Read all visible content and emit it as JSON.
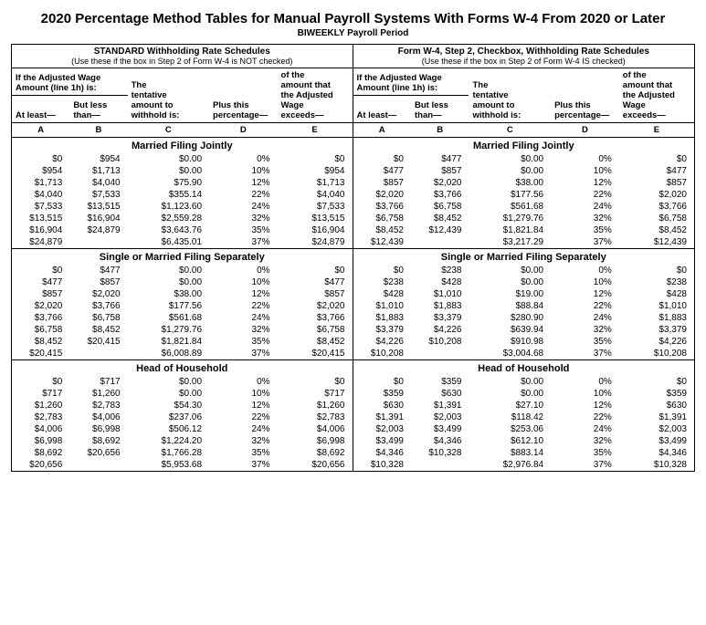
{
  "title": "2020 Percentage Method Tables for Manual Payroll Systems With Forms W-4 From 2020 or Later",
  "subtitle": "BIWEEKLY Payroll Period",
  "schedules": [
    {
      "title": "STANDARD Withholding Rate Schedules",
      "sub": "(Use these if the box in Step 2 of Form W-4 is NOT checked)",
      "headTop": [
        "If the Adjusted Wage Amount (line 1h) is:",
        "",
        "The tentative amount to withhold is:",
        "Plus this percentage—",
        "of the amount that the Adjusted Wage exceeds—"
      ],
      "headMid": [
        "At least—",
        "But less than—",
        "",
        "",
        ""
      ]
    },
    {
      "title": "Form W-4, Step 2, Checkbox, Withholding Rate Schedules",
      "sub": "(Use these if the box in Step 2 of Form W-4 IS checked)",
      "headTop": [
        "If the Adjusted Wage Amount (line 1h) is:",
        "",
        "The tentative amount to withhold is:",
        "Plus this percentage—",
        "of the amount that the Adjusted Wage exceeds—"
      ],
      "headMid": [
        "At least—",
        "But less than—",
        "",
        "",
        ""
      ]
    }
  ],
  "letters": [
    "A",
    "B",
    "C",
    "D",
    "E"
  ],
  "sections": [
    {
      "title": "Married Filing Jointly",
      "left": [
        [
          "$0",
          "$954",
          "$0.00",
          "0%",
          "$0"
        ],
        [
          "$954",
          "$1,713",
          "$0.00",
          "10%",
          "$954"
        ],
        [
          "$1,713",
          "$4,040",
          "$75.90",
          "12%",
          "$1,713"
        ],
        [
          "$4,040",
          "$7,533",
          "$355.14",
          "22%",
          "$4,040"
        ],
        [
          "$7,533",
          "$13,515",
          "$1,123.60",
          "24%",
          "$7,533"
        ],
        [
          "$13,515",
          "$16,904",
          "$2,559.28",
          "32%",
          "$13,515"
        ],
        [
          "$16,904",
          "$24,879",
          "$3,643.76",
          "35%",
          "$16,904"
        ],
        [
          "$24,879",
          "",
          "$6,435.01",
          "37%",
          "$24,879"
        ]
      ],
      "right": [
        [
          "$0",
          "$477",
          "$0.00",
          "0%",
          "$0"
        ],
        [
          "$477",
          "$857",
          "$0.00",
          "10%",
          "$477"
        ],
        [
          "$857",
          "$2,020",
          "$38.00",
          "12%",
          "$857"
        ],
        [
          "$2,020",
          "$3,766",
          "$177.56",
          "22%",
          "$2,020"
        ],
        [
          "$3,766",
          "$6,758",
          "$561.68",
          "24%",
          "$3,766"
        ],
        [
          "$6,758",
          "$8,452",
          "$1,279.76",
          "32%",
          "$6,758"
        ],
        [
          "$8,452",
          "$12,439",
          "$1,821.84",
          "35%",
          "$8,452"
        ],
        [
          "$12,439",
          "",
          "$3,217.29",
          "37%",
          "$12,439"
        ]
      ]
    },
    {
      "title": "Single or Married Filing Separately",
      "left": [
        [
          "$0",
          "$477",
          "$0.00",
          "0%",
          "$0"
        ],
        [
          "$477",
          "$857",
          "$0.00",
          "10%",
          "$477"
        ],
        [
          "$857",
          "$2,020",
          "$38.00",
          "12%",
          "$857"
        ],
        [
          "$2,020",
          "$3,766",
          "$177.56",
          "22%",
          "$2,020"
        ],
        [
          "$3,766",
          "$6,758",
          "$561.68",
          "24%",
          "$3,766"
        ],
        [
          "$6,758",
          "$8,452",
          "$1,279.76",
          "32%",
          "$6,758"
        ],
        [
          "$8,452",
          "$20,415",
          "$1,821.84",
          "35%",
          "$8,452"
        ],
        [
          "$20,415",
          "",
          "$6,008.89",
          "37%",
          "$20,415"
        ]
      ],
      "right": [
        [
          "$0",
          "$238",
          "$0.00",
          "0%",
          "$0"
        ],
        [
          "$238",
          "$428",
          "$0.00",
          "10%",
          "$238"
        ],
        [
          "$428",
          "$1,010",
          "$19.00",
          "12%",
          "$428"
        ],
        [
          "$1,010",
          "$1,883",
          "$88.84",
          "22%",
          "$1,010"
        ],
        [
          "$1,883",
          "$3,379",
          "$280.90",
          "24%",
          "$1,883"
        ],
        [
          "$3,379",
          "$4,226",
          "$639.94",
          "32%",
          "$3,379"
        ],
        [
          "$4,226",
          "$10,208",
          "$910.98",
          "35%",
          "$4,226"
        ],
        [
          "$10,208",
          "",
          "$3,004.68",
          "37%",
          "$10,208"
        ]
      ]
    },
    {
      "title": "Head of Household",
      "left": [
        [
          "$0",
          "$717",
          "$0.00",
          "0%",
          "$0"
        ],
        [
          "$717",
          "$1,260",
          "$0.00",
          "10%",
          "$717"
        ],
        [
          "$1,260",
          "$2,783",
          "$54.30",
          "12%",
          "$1,260"
        ],
        [
          "$2,783",
          "$4,006",
          "$237.06",
          "22%",
          "$2,783"
        ],
        [
          "$4,006",
          "$6,998",
          "$506.12",
          "24%",
          "$4,006"
        ],
        [
          "$6,998",
          "$8,692",
          "$1,224.20",
          "32%",
          "$6,998"
        ],
        [
          "$8,692",
          "$20,656",
          "$1,766.28",
          "35%",
          "$8,692"
        ],
        [
          "$20,656",
          "",
          "$5,953.68",
          "37%",
          "$20,656"
        ]
      ],
      "right": [
        [
          "$0",
          "$359",
          "$0.00",
          "0%",
          "$0"
        ],
        [
          "$359",
          "$630",
          "$0.00",
          "10%",
          "$359"
        ],
        [
          "$630",
          "$1,391",
          "$27.10",
          "12%",
          "$630"
        ],
        [
          "$1,391",
          "$2,003",
          "$118.42",
          "22%",
          "$1,391"
        ],
        [
          "$2,003",
          "$3,499",
          "$253.06",
          "24%",
          "$2,003"
        ],
        [
          "$3,499",
          "$4,346",
          "$612.10",
          "32%",
          "$3,499"
        ],
        [
          "$4,346",
          "$10,328",
          "$883.14",
          "35%",
          "$4,346"
        ],
        [
          "$10,328",
          "",
          "$2,976.84",
          "37%",
          "$10,328"
        ]
      ]
    }
  ]
}
